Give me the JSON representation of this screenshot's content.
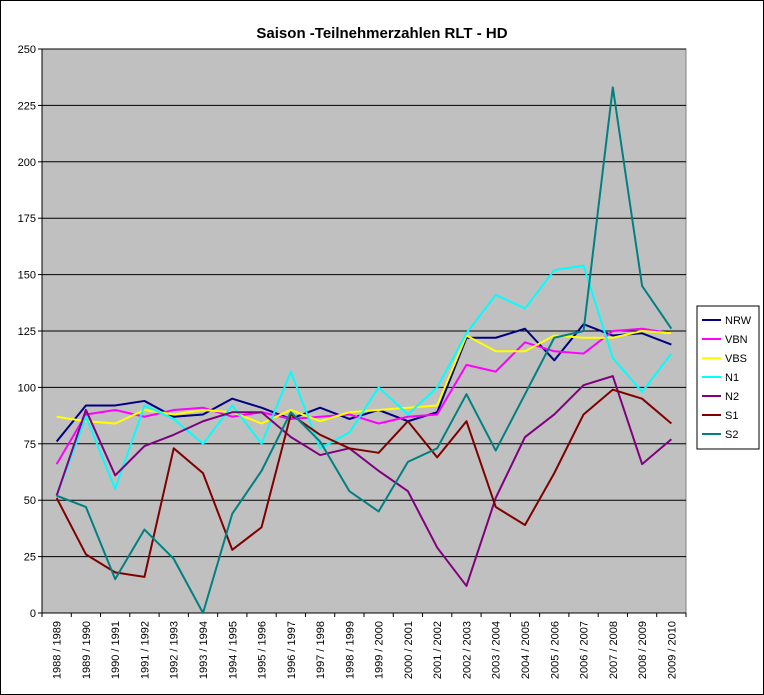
{
  "chart_data": {
    "type": "line",
    "title": "Saison -Teilnehmerzahlen RLT - HD",
    "categories": [
      "1988 / 1989",
      "1989 / 1990",
      "1990 / 1991",
      "1991 / 1992",
      "1992 / 1993",
      "1993 / 1994",
      "1994 / 1995",
      "1995 / 1996",
      "1996 / 1997",
      "1997 / 1998",
      "1998 / 1999",
      "1999 / 2000",
      "2000 / 2001",
      "2001 / 2002",
      "2002 / 2003",
      "2003 / 2004",
      "2004 / 2005",
      "2005 / 2006",
      "2006 / 2007",
      "2007 / 2008",
      "2008 / 2009",
      "2009 / 2010"
    ],
    "series": [
      {
        "name": "NRW",
        "color": "#000080",
        "values": [
          76,
          92,
          92,
          94,
          87,
          88,
          95,
          91,
          86,
          91,
          86,
          90,
          85,
          89,
          122,
          122,
          126,
          112,
          128,
          123,
          124,
          119
        ]
      },
      {
        "name": "VBN",
        "color": "#ff00ff",
        "values": [
          66,
          88,
          90,
          87,
          90,
          91,
          87,
          89,
          86,
          87,
          88,
          84,
          87,
          88,
          110,
          107,
          120,
          116,
          115,
          125,
          126,
          124
        ]
      },
      {
        "name": "VBS",
        "color": "#ffff00",
        "values": [
          87,
          85,
          84,
          90,
          88,
          90,
          89,
          84,
          90,
          85,
          89,
          90,
          91,
          92,
          123,
          116,
          116,
          123,
          122,
          122,
          125,
          124
        ]
      },
      {
        "name": "N1",
        "color": "#00ffff",
        "values": [
          52,
          87,
          55,
          92,
          86,
          75,
          92,
          75,
          107,
          73,
          80,
          100,
          88,
          100,
          124,
          141,
          135,
          152,
          154,
          113,
          98,
          115
        ]
      },
      {
        "name": "N2",
        "color": "#800080",
        "values": [
          52,
          90,
          61,
          74,
          79,
          85,
          89,
          89,
          78,
          70,
          73,
          63,
          54,
          29,
          12,
          51,
          78,
          88,
          101,
          105,
          66,
          77
        ]
      },
      {
        "name": "S1",
        "color": "#800000",
        "values": [
          51,
          26,
          18,
          16,
          73,
          62,
          28,
          38,
          88,
          79,
          73,
          71,
          85,
          69,
          85,
          47,
          39,
          62,
          88,
          99,
          95,
          84
        ]
      },
      {
        "name": "S2",
        "color": "#008080",
        "values": [
          52,
          47,
          15,
          37,
          24,
          0,
          44,
          63,
          89,
          76,
          54,
          45,
          67,
          73,
          97,
          72,
          97,
          122,
          125,
          233,
          145,
          126
        ]
      }
    ],
    "ylim": [
      0,
      250
    ],
    "yticks": [
      0,
      25,
      50,
      75,
      100,
      125,
      150,
      175,
      200,
      225,
      250
    ],
    "grid": true,
    "legend": "right",
    "plot_background": "#c0c0c0"
  }
}
